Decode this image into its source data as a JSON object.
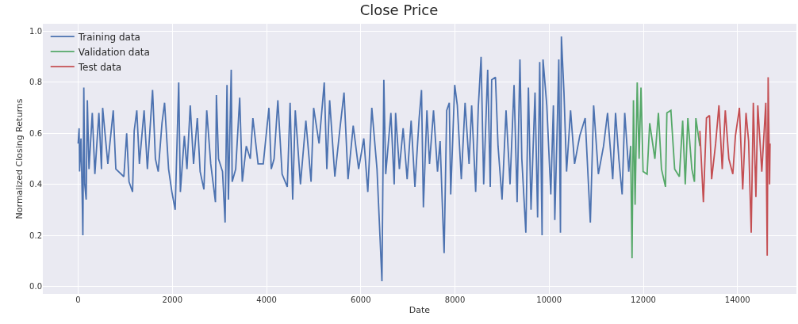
{
  "chart_data": {
    "type": "line",
    "title": "Close Price",
    "xlabel": "Date",
    "ylabel": "Normalized Closing Returns",
    "xlim": [
      -750,
      15250
    ],
    "ylim": [
      -0.03,
      1.03
    ],
    "xticks": [
      0,
      2000,
      4000,
      6000,
      8000,
      10000,
      12000,
      14000
    ],
    "yticks": [
      {
        "value": 0,
        "label": "0.0"
      },
      {
        "value": 0.2,
        "label": "0.2"
      },
      {
        "value": 0.4,
        "label": "0.4"
      },
      {
        "value": 0.6,
        "label": "0.6"
      },
      {
        "value": 0.8,
        "label": "0.8"
      },
      {
        "value": 1,
        "label": "1.0"
      }
    ],
    "grid": true,
    "legend": "top left",
    "marker": "none",
    "line_style": "solid",
    "series": [
      {
        "name": "Training data",
        "color": "#4c72b0",
        "x": [
          0,
          20,
          30,
          60,
          85,
          100,
          120,
          140,
          170,
          195,
          230,
          300,
          355,
          440,
          495,
          520,
          630,
          745,
          800,
          970,
          1030,
          1080,
          1155,
          1190,
          1245,
          1300,
          1400,
          1470,
          1580,
          1640,
          1700,
          1780,
          1835,
          1920,
          1990,
          2060,
          2135,
          2170,
          2255,
          2310,
          2380,
          2450,
          2530,
          2590,
          2670,
          2730,
          2815,
          2915,
          2935,
          2980,
          3065,
          3120,
          3160,
          3190,
          3250,
          3270,
          3345,
          3430,
          3485,
          3570,
          3655,
          3710,
          3820,
          3930,
          4050,
          4100,
          4160,
          4240,
          4330,
          4440,
          4500,
          4555,
          4610,
          4720,
          4835,
          4945,
          5000,
          5115,
          5225,
          5280,
          5340,
          5450,
          5565,
          5645,
          5730,
          5840,
          5955,
          6065,
          6150,
          6235,
          6345,
          6450,
          6490,
          6530,
          6640,
          6710,
          6740,
          6820,
          6900,
          6985,
          7070,
          7150,
          7240,
          7290,
          7330,
          7405,
          7460,
          7545,
          7630,
          7685,
          7740,
          7770,
          7825,
          7880,
          7910,
          7995,
          8050,
          8135,
          8215,
          8300,
          8355,
          8440,
          8495,
          8555,
          8610,
          8695,
          8750,
          8780,
          8860,
          8915,
          9000,
          9085,
          9170,
          9255,
          9320,
          9380,
          9420,
          9505,
          9560,
          9615,
          9700,
          9755,
          9800,
          9850,
          9870,
          9950,
          10035,
          10090,
          10120,
          10175,
          10205,
          10240,
          10260,
          10315,
          10370,
          10455,
          10540,
          10650,
          10765,
          10875,
          10945,
          11045,
          11155,
          11240,
          11350,
          11410,
          11480,
          11550,
          11605,
          11690,
          11730
        ],
        "values": [
          0.56,
          0.62,
          0.45,
          0.58,
          0.36,
          0.2,
          0.78,
          0.4,
          0.34,
          0.73,
          0.46,
          0.68,
          0.44,
          0.68,
          0.46,
          0.7,
          0.48,
          0.69,
          0.46,
          0.43,
          0.6,
          0.41,
          0.37,
          0.61,
          0.69,
          0.48,
          0.69,
          0.46,
          0.77,
          0.5,
          0.45,
          0.64,
          0.72,
          0.46,
          0.37,
          0.3,
          0.8,
          0.37,
          0.59,
          0.46,
          0.71,
          0.48,
          0.66,
          0.45,
          0.38,
          0.69,
          0.48,
          0.33,
          0.75,
          0.5,
          0.45,
          0.25,
          0.79,
          0.34,
          0.85,
          0.41,
          0.46,
          0.74,
          0.41,
          0.55,
          0.5,
          0.66,
          0.48,
          0.48,
          0.7,
          0.46,
          0.5,
          0.73,
          0.44,
          0.39,
          0.72,
          0.34,
          0.69,
          0.4,
          0.65,
          0.41,
          0.7,
          0.56,
          0.8,
          0.46,
          0.73,
          0.43,
          0.63,
          0.76,
          0.42,
          0.63,
          0.46,
          0.58,
          0.37,
          0.7,
          0.46,
          0.02,
          0.81,
          0.44,
          0.68,
          0.4,
          0.68,
          0.46,
          0.62,
          0.42,
          0.65,
          0.39,
          0.66,
          0.77,
          0.31,
          0.69,
          0.48,
          0.69,
          0.45,
          0.57,
          0.28,
          0.13,
          0.69,
          0.72,
          0.36,
          0.79,
          0.71,
          0.42,
          0.72,
          0.48,
          0.71,
          0.37,
          0.7,
          0.9,
          0.4,
          0.85,
          0.39,
          0.81,
          0.82,
          0.55,
          0.34,
          0.69,
          0.4,
          0.79,
          0.33,
          0.89,
          0.5,
          0.21,
          0.78,
          0.3,
          0.76,
          0.27,
          0.88,
          0.2,
          0.89,
          0.71,
          0.36,
          0.71,
          0.26,
          0.65,
          0.89,
          0.21,
          0.98,
          0.76,
          0.45,
          0.69,
          0.48,
          0.59,
          0.66,
          0.25,
          0.71,
          0.44,
          0.55,
          0.68,
          0.42,
          0.68,
          0.5,
          0.36,
          0.68,
          0.45,
          0.55
        ]
      },
      {
        "name": "Validation data",
        "color": "#55a868",
        "x": [
          11730,
          11760,
          11790,
          11825,
          11870,
          11910,
          11950,
          11995,
          12080,
          12135,
          12245,
          12320,
          12385,
          12470,
          12500,
          12585,
          12665,
          12765,
          12835,
          12890,
          12945,
          13030,
          13085,
          13115,
          13200
        ],
        "values": [
          0.55,
          0.11,
          0.73,
          0.32,
          0.8,
          0.5,
          0.78,
          0.45,
          0.44,
          0.64,
          0.5,
          0.68,
          0.46,
          0.39,
          0.68,
          0.69,
          0.46,
          0.43,
          0.65,
          0.4,
          0.66,
          0.46,
          0.41,
          0.66,
          0.55
        ]
      },
      {
        "name": "Test data",
        "color": "#c44e52",
        "x": [
          13200,
          13275,
          13340,
          13405,
          13450,
          13535,
          13605,
          13675,
          13740,
          13815,
          13900,
          13955,
          14040,
          14110,
          14180,
          14235,
          14290,
          14335,
          14390,
          14430,
          14515,
          14600,
          14630,
          14650,
          14680,
          14690
        ],
        "values": [
          0.61,
          0.33,
          0.66,
          0.67,
          0.42,
          0.56,
          0.71,
          0.46,
          0.69,
          0.5,
          0.44,
          0.59,
          0.7,
          0.38,
          0.68,
          0.57,
          0.21,
          0.72,
          0.35,
          0.71,
          0.45,
          0.72,
          0.12,
          0.82,
          0.4,
          0.56
        ]
      }
    ]
  }
}
